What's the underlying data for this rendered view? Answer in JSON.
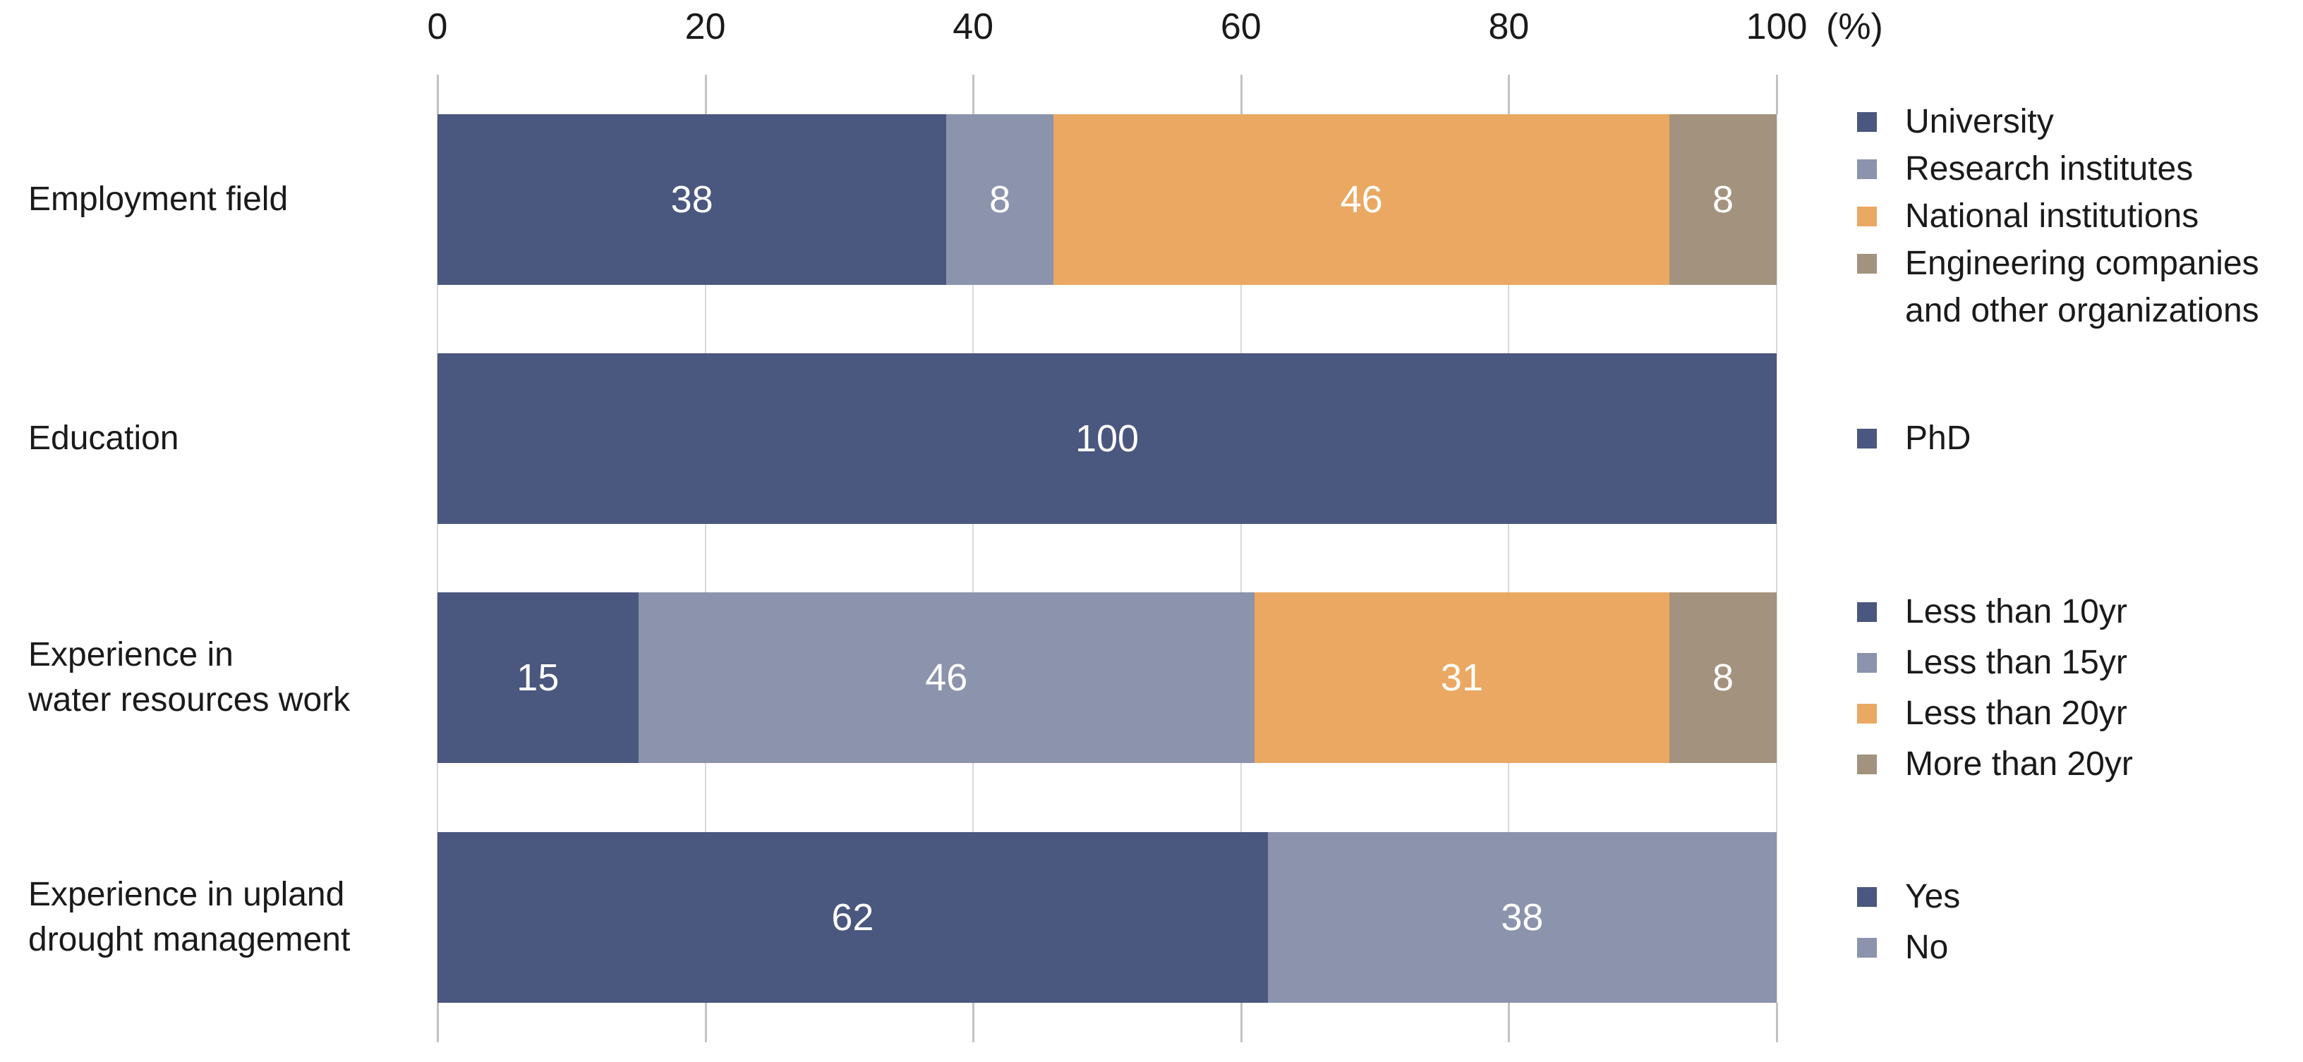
{
  "chart_data": {
    "type": "bar",
    "orientation": "horizontal",
    "stacked": true,
    "grid": true,
    "legend_position": "right",
    "x_axis": {
      "position": "top",
      "range": [
        0,
        100
      ],
      "tick_labels": [
        "0",
        "20",
        "40",
        "60",
        "80",
        "100"
      ],
      "tick_values": [
        0,
        20,
        40,
        60,
        80,
        100
      ],
      "unit": "(%)"
    },
    "palette": {
      "navy": "#4A577F",
      "steel": "#8B93AD",
      "orange": "#EAA862",
      "brown": "#A3927D"
    },
    "categories": [
      "Employment field",
      "Education",
      "Experience in water resources work",
      "Experience in upland drought management"
    ],
    "rows": [
      {
        "category_lines": [
          "Employment field"
        ],
        "segments": [
          {
            "value": 38,
            "label": "38",
            "color": "navy",
            "legend_lines": [
              "University"
            ]
          },
          {
            "value": 8,
            "label": "8",
            "color": "steel",
            "legend_lines": [
              "Research institutes"
            ]
          },
          {
            "value": 46,
            "label": "46",
            "color": "orange",
            "legend_lines": [
              "National institutions"
            ]
          },
          {
            "value": 8,
            "label": "8",
            "color": "brown",
            "legend_lines": [
              "Engineering companies",
              "and other organizations"
            ]
          }
        ]
      },
      {
        "category_lines": [
          "Education"
        ],
        "segments": [
          {
            "value": 100,
            "label": "100",
            "color": "navy",
            "legend_lines": [
              "PhD"
            ]
          }
        ]
      },
      {
        "category_lines": [
          "Experience in",
          "water resources work"
        ],
        "segments": [
          {
            "value": 15,
            "label": "15",
            "color": "navy",
            "legend_lines": [
              "Less than 10yr"
            ]
          },
          {
            "value": 46,
            "label": "46",
            "color": "steel",
            "legend_lines": [
              "Less than 15yr"
            ]
          },
          {
            "value": 31,
            "label": "31",
            "color": "orange",
            "legend_lines": [
              "Less than 20yr"
            ]
          },
          {
            "value": 8,
            "label": "8",
            "color": "brown",
            "legend_lines": [
              "More than 20yr"
            ]
          }
        ]
      },
      {
        "category_lines": [
          "Experience in upland",
          "drought management"
        ],
        "segments": [
          {
            "value": 62,
            "label": "62",
            "color": "navy",
            "legend_lines": [
              "Yes"
            ]
          },
          {
            "value": 38,
            "label": "38",
            "color": "steel",
            "legend_lines": [
              "No"
            ]
          }
        ]
      }
    ]
  }
}
